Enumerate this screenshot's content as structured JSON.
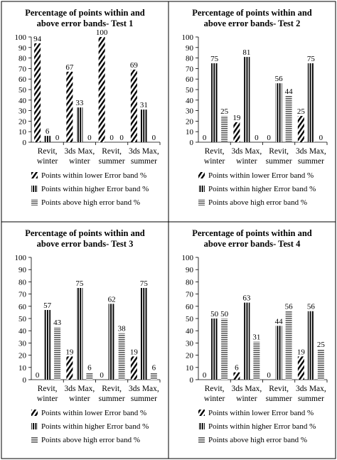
{
  "chart_data": [
    {
      "type": "bar",
      "title": "Percentage of points within and above error bands- Test 1",
      "categories": [
        [
          "Revit,",
          "winter"
        ],
        [
          "3ds Max,",
          "winter"
        ],
        [
          "Revit,",
          "summer"
        ],
        [
          "3ds Max,",
          "summer"
        ]
      ],
      "series": [
        {
          "name": "Points within lower Error band %",
          "values": [
            94,
            67,
            100,
            69
          ],
          "pattern": "diagonal"
        },
        {
          "name": "Points within higher Error band %",
          "values": [
            6,
            33,
            0,
            31
          ],
          "pattern": "vertical"
        },
        {
          "name": "Points above high error band %",
          "values": [
            0,
            0,
            0,
            0
          ],
          "pattern": "horizontal"
        }
      ],
      "ylim": [
        0,
        100
      ],
      "yticks": [
        0,
        10,
        20,
        30,
        40,
        50,
        60,
        70,
        80,
        90,
        100
      ],
      "grid": false,
      "legend_position": "bottom"
    },
    {
      "type": "bar",
      "title": "Percentage of points within and above error bands- Test 2",
      "categories": [
        [
          "Revit,",
          "winter"
        ],
        [
          "3ds Max,",
          "winter"
        ],
        [
          "Revit,",
          "summer"
        ],
        [
          "3ds Max,",
          "summer"
        ]
      ],
      "series": [
        {
          "name": "Points within lower Error band %",
          "values": [
            0,
            19,
            0,
            25
          ],
          "pattern": "diagonal"
        },
        {
          "name": "Points within higher Error band %",
          "values": [
            75,
            81,
            56,
            75
          ],
          "pattern": "vertical"
        },
        {
          "name": "Points above high error band %",
          "values": [
            25,
            0,
            44,
            0
          ],
          "pattern": "horizontal"
        }
      ],
      "ylim": [
        0,
        100
      ],
      "yticks": [
        0,
        10,
        20,
        30,
        40,
        50,
        60,
        70,
        80,
        90,
        100
      ],
      "grid": false,
      "legend_position": "bottom"
    },
    {
      "type": "bar",
      "title": "Percentage of points within and above error bands- Test 3",
      "categories": [
        [
          "Revit,",
          "winter"
        ],
        [
          "3ds Max,",
          "winter"
        ],
        [
          "Revit,",
          "summer"
        ],
        [
          "3ds Max,",
          "summer"
        ]
      ],
      "series": [
        {
          "name": "Points within lower Error band %",
          "values": [
            0,
            19,
            0,
            19
          ],
          "pattern": "diagonal"
        },
        {
          "name": "Points within higher Error band %",
          "values": [
            57,
            75,
            62,
            75
          ],
          "pattern": "vertical"
        },
        {
          "name": "Points above high error band %",
          "values": [
            43,
            6,
            38,
            6
          ],
          "pattern": "horizontal"
        }
      ],
      "ylim": [
        0,
        100
      ],
      "yticks": [
        0,
        10,
        20,
        30,
        40,
        50,
        60,
        70,
        80,
        90,
        100
      ],
      "grid": false,
      "legend_position": "bottom"
    },
    {
      "type": "bar",
      "title": "Percentage of points within and above error bands- Test 4",
      "categories": [
        [
          "Revit,",
          "winter"
        ],
        [
          "3ds Max,",
          "winter"
        ],
        [
          "Revit,",
          "summer"
        ],
        [
          "3ds Max,",
          "summer"
        ]
      ],
      "series": [
        {
          "name": "Points within lower Error band %",
          "values": [
            0,
            6,
            0,
            19
          ],
          "pattern": "diagonal"
        },
        {
          "name": "Points within higher Error band %",
          "values": [
            50,
            63,
            44,
            56
          ],
          "pattern": "vertical"
        },
        {
          "name": "Points above high error band %",
          "values": [
            50,
            31,
            56,
            25
          ],
          "pattern": "horizontal"
        }
      ],
      "ylim": [
        0,
        100
      ],
      "yticks": [
        0,
        10,
        20,
        30,
        40,
        50,
        60,
        70,
        80,
        90,
        100
      ],
      "grid": false,
      "legend_position": "bottom"
    }
  ]
}
